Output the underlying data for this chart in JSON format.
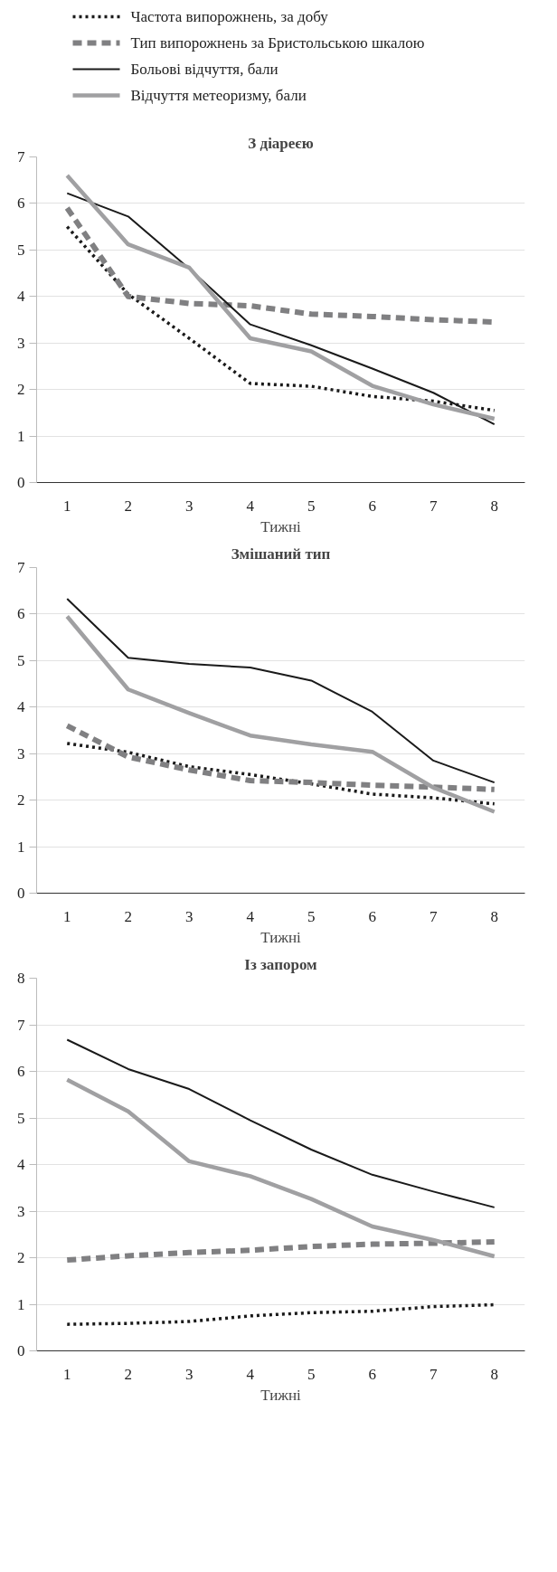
{
  "chart_data": [
    {
      "type": "line",
      "title": "З діареєю",
      "xlabel": "Тижні",
      "categories": [
        "1",
        "2",
        "3",
        "4",
        "5",
        "6",
        "7",
        "8"
      ],
      "ylim": [
        0,
        7
      ],
      "yticks": [
        0,
        1,
        2,
        3,
        4,
        5,
        6,
        7
      ],
      "grid": "y",
      "legend": "top",
      "series": [
        {
          "name": "Частота випорожнень, за добу",
          "color": "#1a1a1a",
          "line_style": "dotted",
          "values": [
            5.5,
            4.05,
            3.1,
            2.13,
            2.07,
            1.85,
            1.75,
            1.55
          ]
        },
        {
          "name": "Тип випорожнень за Бристольською шкалою",
          "color": "#808082",
          "line_style": "dashed",
          "values": [
            5.9,
            4.0,
            3.85,
            3.8,
            3.62,
            3.57,
            3.5,
            3.45
          ]
        },
        {
          "name": "Больові відчуття, бали",
          "color": "#1a1a1a",
          "line_style": "solid",
          "values": [
            6.22,
            5.72,
            4.6,
            3.4,
            2.95,
            2.45,
            1.93,
            1.25
          ]
        },
        {
          "name": "Відчуття метеоризму, бали",
          "color": "#a0a0a2",
          "line_style": "solid",
          "values": [
            6.6,
            5.12,
            4.62,
            3.1,
            2.82,
            2.08,
            1.68,
            1.37
          ]
        }
      ]
    },
    {
      "type": "line",
      "title": "Змішаний тип",
      "xlabel": "Тижні",
      "categories": [
        "1",
        "2",
        "3",
        "4",
        "5",
        "6",
        "7",
        "8"
      ],
      "ylim": [
        0,
        7
      ],
      "yticks": [
        0,
        1,
        2,
        3,
        4,
        5,
        6,
        7
      ],
      "grid": "y",
      "series": [
        {
          "color": "#1a1a1a",
          "line_style": "dotted",
          "values": [
            3.22,
            3.03,
            2.72,
            2.55,
            2.35,
            2.13,
            2.05,
            1.92
          ]
        },
        {
          "color": "#808082",
          "line_style": "dashed",
          "values": [
            3.6,
            2.93,
            2.65,
            2.42,
            2.38,
            2.32,
            2.28,
            2.23
          ]
        },
        {
          "color": "#1a1a1a",
          "line_style": "solid",
          "values": [
            6.33,
            5.06,
            4.93,
            4.85,
            4.57,
            3.9,
            2.85,
            2.38
          ]
        },
        {
          "color": "#a0a0a2",
          "line_style": "solid",
          "values": [
            5.95,
            4.38,
            3.87,
            3.39,
            3.2,
            3.04,
            2.27,
            1.75
          ]
        }
      ]
    },
    {
      "type": "line",
      "title": "Із запором",
      "xlabel": "Тижні",
      "categories": [
        "1",
        "2",
        "3",
        "4",
        "5",
        "6",
        "7",
        "8"
      ],
      "ylim": [
        0,
        8
      ],
      "yticks": [
        0,
        1,
        2,
        3,
        4,
        5,
        6,
        7,
        8
      ],
      "grid": "y",
      "series": [
        {
          "color": "#1a1a1a",
          "line_style": "dotted",
          "values": [
            0.57,
            0.59,
            0.63,
            0.75,
            0.82,
            0.85,
            0.95,
            0.99
          ]
        },
        {
          "color": "#808082",
          "line_style": "dashed",
          "values": [
            1.95,
            2.04,
            2.11,
            2.16,
            2.24,
            2.29,
            2.31,
            2.34
          ]
        },
        {
          "color": "#1a1a1a",
          "line_style": "solid",
          "values": [
            6.68,
            6.05,
            5.62,
            4.95,
            4.32,
            3.78,
            3.42,
            3.08
          ]
        },
        {
          "color": "#a0a0a2",
          "line_style": "solid",
          "values": [
            5.82,
            5.14,
            4.07,
            3.75,
            3.26,
            2.67,
            2.38,
            2.03
          ]
        }
      ]
    }
  ]
}
